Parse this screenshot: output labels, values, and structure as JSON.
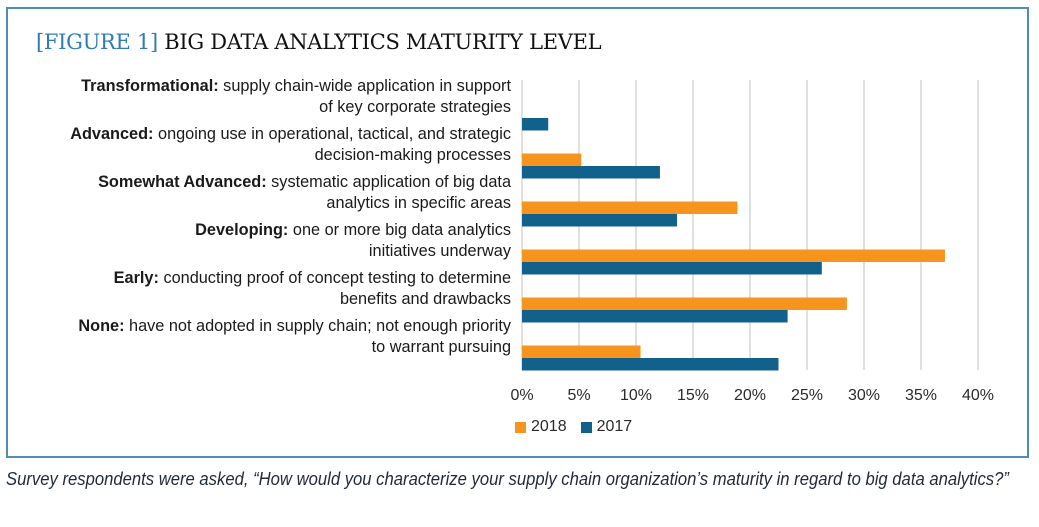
{
  "figure": {
    "prefix": "[FIGURE 1]",
    "title": "BIG DATA ANALYTICS MATURITY LEVEL"
  },
  "caption": "Survey respondents were asked, “How would you characterize your supply chain organization’s maturity in regard to big data analytics?”",
  "colors": {
    "2018": "#f7941d",
    "2017": "#12618d",
    "title_accent": "#2e7db5",
    "frame": "#4f8db3",
    "grid": "#d9d9d9"
  },
  "chart_data": {
    "type": "bar",
    "orientation": "horizontal",
    "title": "BIG DATA ANALYTICS MATURITY LEVEL",
    "xlabel": "",
    "ylabel": "",
    "xlim": [
      0,
      40
    ],
    "x_ticks": [
      "0%",
      "5%",
      "10%",
      "15%",
      "20%",
      "25%",
      "30%",
      "35%",
      "40%"
    ],
    "x_tick_values": [
      0,
      5,
      10,
      15,
      20,
      25,
      30,
      35,
      40
    ],
    "grid": true,
    "legend_position": "bottom-left",
    "categories": [
      {
        "name": "Transformational:",
        "desc_line1": "supply chain-wide application in support",
        "desc_line2": "of key corporate strategies"
      },
      {
        "name": "Advanced:",
        "desc_line1": "ongoing use in operational, tactical, and strategic",
        "desc_line2": "decision-making processes"
      },
      {
        "name": "Somewhat Advanced:",
        "desc_line1": "systematic application of big data",
        "desc_line2": "analytics in specific areas"
      },
      {
        "name": "Developing:",
        "desc_line1": "one or more big data analytics",
        "desc_line2": "initiatives underway"
      },
      {
        "name": "Early:",
        "desc_line1": "conducting proof of concept testing to determine",
        "desc_line2": "benefits and drawbacks"
      },
      {
        "name": "None:",
        "desc_line1": "have not adopted in supply chain; not enough priority",
        "desc_line2": "to warrant pursuing"
      }
    ],
    "series": [
      {
        "name": "2018",
        "values": [
          0,
          5.2,
          18.9,
          37.1,
          28.5,
          10.4
        ]
      },
      {
        "name": "2017",
        "values": [
          2.3,
          12.1,
          13.6,
          26.3,
          23.3,
          22.5
        ]
      }
    ]
  }
}
